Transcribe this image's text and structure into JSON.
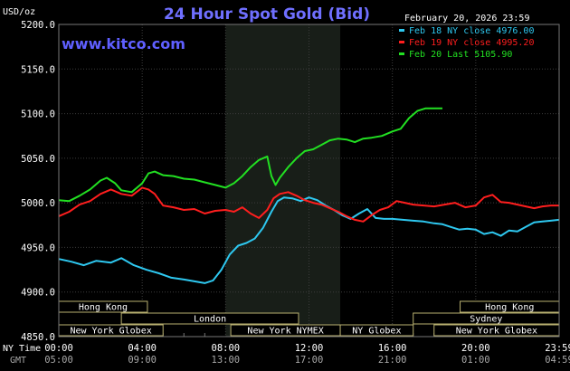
{
  "header": {
    "title": "24 Hour Spot Gold (Bid)",
    "unit": "USD/oz",
    "watermark": "www.kitco.com",
    "date": "February 20, 2026 23:59"
  },
  "legend": {
    "items": [
      {
        "text": "Feb 18 NY close 4976.00",
        "color": "#2ec8f0"
      },
      {
        "text": "Feb 19 NY close 4995.20",
        "color": "#ff1e1e"
      },
      {
        "text": "Feb 20 Last 5105.90",
        "color": "#22e022"
      }
    ]
  },
  "axis_labels": {
    "ny_time": "NY Time",
    "gmt": "GMT"
  },
  "markets": [
    {
      "label": "Hong Kong",
      "start_h": 0,
      "end_h": 4.25,
      "row": 0
    },
    {
      "label": "Hong Kong",
      "start_h": 19.25,
      "end_h": 24,
      "row": 0
    },
    {
      "label": "London",
      "start_h": 3,
      "end_h": 11.5,
      "row": 1
    },
    {
      "label": "Sydney",
      "start_h": 17,
      "end_h": 24,
      "row": 1
    },
    {
      "label": "New York Globex",
      "start_h": 0,
      "end_h": 5,
      "row": 2
    },
    {
      "label": "New York NYMEX",
      "start_h": 8.25,
      "end_h": 13.5,
      "row": 2
    },
    {
      "label": "NY Globex",
      "start_h": 13.5,
      "end_h": 17,
      "row": 2
    },
    {
      "label": "New York Globex",
      "start_h": 18,
      "end_h": 24,
      "row": 2
    }
  ],
  "chart_data": {
    "type": "line",
    "title": "24 Hour Spot Gold (Bid)",
    "ylabel": "USD/oz",
    "ylim": [
      4850,
      5200
    ],
    "yticks": [
      4850,
      4900,
      4950,
      5000,
      5050,
      5100,
      5150,
      5200
    ],
    "xlim_hours": [
      0,
      24
    ],
    "x_ticks": [
      {
        "h": 0,
        "ny": "00:00",
        "gmt": "05:00"
      },
      {
        "h": 4,
        "ny": "04:00",
        "gmt": "09:00"
      },
      {
        "h": 8,
        "ny": "08:00",
        "gmt": "13:00"
      },
      {
        "h": 12,
        "ny": "12:00",
        "gmt": "17:00"
      },
      {
        "h": 16,
        "ny": "16:00",
        "gmt": "21:00"
      },
      {
        "h": 20,
        "ny": "20:00",
        "gmt": "01:00"
      },
      {
        "h": 24,
        "ny": "23:59",
        "gmt": "04:59"
      }
    ],
    "shaded_hours": [
      8,
      13.5
    ],
    "grid": true,
    "legend_position": "top-right",
    "series": [
      {
        "name": "Feb 18 NY close 4976.00",
        "color": "#2ec8f0",
        "points": [
          [
            0,
            4937
          ],
          [
            0.6,
            4934
          ],
          [
            1.2,
            4930
          ],
          [
            1.8,
            4935
          ],
          [
            2.5,
            4933
          ],
          [
            3,
            4938
          ],
          [
            3.6,
            4930
          ],
          [
            4.2,
            4925
          ],
          [
            4.8,
            4921
          ],
          [
            5.4,
            4916
          ],
          [
            6,
            4914
          ],
          [
            6.5,
            4912
          ],
          [
            7,
            4910
          ],
          [
            7.4,
            4913
          ],
          [
            7.8,
            4925
          ],
          [
            8.2,
            4942
          ],
          [
            8.6,
            4952
          ],
          [
            9,
            4955
          ],
          [
            9.4,
            4960
          ],
          [
            9.8,
            4972
          ],
          [
            10.2,
            4990
          ],
          [
            10.5,
            5002
          ],
          [
            10.8,
            5006
          ],
          [
            11.2,
            5005
          ],
          [
            11.6,
            5002
          ],
          [
            12,
            5006
          ],
          [
            12.4,
            5003
          ],
          [
            12.8,
            4997
          ],
          [
            13.2,
            4992
          ],
          [
            13.6,
            4986
          ],
          [
            14,
            4982
          ],
          [
            14.4,
            4988
          ],
          [
            14.8,
            4993
          ],
          [
            15.2,
            4983
          ],
          [
            15.6,
            4982
          ],
          [
            16,
            4982
          ],
          [
            16.5,
            4981
          ],
          [
            17,
            4980
          ],
          [
            17.5,
            4979
          ],
          [
            18,
            4977
          ],
          [
            18.4,
            4976
          ],
          [
            18.8,
            4973
          ],
          [
            19.2,
            4970
          ],
          [
            19.6,
            4971
          ],
          [
            20,
            4970
          ],
          [
            20.4,
            4965
          ],
          [
            20.8,
            4967
          ],
          [
            21.2,
            4963
          ],
          [
            21.6,
            4969
          ],
          [
            22,
            4968
          ],
          [
            22.4,
            4973
          ],
          [
            22.8,
            4978
          ],
          [
            23.2,
            4979
          ],
          [
            23.6,
            4980
          ],
          [
            24,
            4981
          ]
        ]
      },
      {
        "name": "Feb 19 NY close 4995.20",
        "color": "#ff1e1e",
        "points": [
          [
            0,
            4985
          ],
          [
            0.5,
            4990
          ],
          [
            1,
            4998
          ],
          [
            1.5,
            5002
          ],
          [
            2,
            5010
          ],
          [
            2.5,
            5015
          ],
          [
            3,
            5010
          ],
          [
            3.5,
            5008
          ],
          [
            4,
            5017
          ],
          [
            4.3,
            5015
          ],
          [
            4.6,
            5010
          ],
          [
            5,
            4997
          ],
          [
            5.5,
            4995
          ],
          [
            6,
            4992
          ],
          [
            6.5,
            4993
          ],
          [
            7,
            4988
          ],
          [
            7.5,
            4991
          ],
          [
            8,
            4992
          ],
          [
            8.4,
            4990
          ],
          [
            8.8,
            4995
          ],
          [
            9.2,
            4988
          ],
          [
            9.6,
            4983
          ],
          [
            10,
            4992
          ],
          [
            10.3,
            5005
          ],
          [
            10.6,
            5010
          ],
          [
            11,
            5012
          ],
          [
            11.4,
            5008
          ],
          [
            11.8,
            5003
          ],
          [
            12.2,
            5000
          ],
          [
            12.6,
            4998
          ],
          [
            13,
            4994
          ],
          [
            13.4,
            4990
          ],
          [
            13.8,
            4985
          ],
          [
            14.2,
            4981
          ],
          [
            14.6,
            4979
          ],
          [
            15,
            4986
          ],
          [
            15.4,
            4992
          ],
          [
            15.8,
            4995
          ],
          [
            16.2,
            5002
          ],
          [
            16.6,
            5000
          ],
          [
            17,
            4998
          ],
          [
            17.5,
            4997
          ],
          [
            18,
            4996
          ],
          [
            18.5,
            4998
          ],
          [
            19,
            5000
          ],
          [
            19.5,
            4995
          ],
          [
            20,
            4997
          ],
          [
            20.4,
            5006
          ],
          [
            20.8,
            5009
          ],
          [
            21.2,
            5001
          ],
          [
            21.6,
            5000
          ],
          [
            22,
            4998
          ],
          [
            22.4,
            4996
          ],
          [
            22.8,
            4994
          ],
          [
            23.2,
            4996
          ],
          [
            23.6,
            4997
          ],
          [
            24,
            4997
          ]
        ]
      },
      {
        "name": "Feb 20 Last 5105.90",
        "color": "#22e022",
        "points": [
          [
            0,
            5003
          ],
          [
            0.5,
            5002
          ],
          [
            1,
            5008
          ],
          [
            1.5,
            5015
          ],
          [
            2,
            5025
          ],
          [
            2.3,
            5028
          ],
          [
            2.7,
            5022
          ],
          [
            3,
            5014
          ],
          [
            3.5,
            5012
          ],
          [
            4,
            5022
          ],
          [
            4.3,
            5033
          ],
          [
            4.6,
            5035
          ],
          [
            5,
            5031
          ],
          [
            5.5,
            5030
          ],
          [
            6,
            5027
          ],
          [
            6.5,
            5026
          ],
          [
            7,
            5023
          ],
          [
            7.5,
            5020
          ],
          [
            8,
            5017
          ],
          [
            8.4,
            5022
          ],
          [
            8.8,
            5030
          ],
          [
            9.2,
            5040
          ],
          [
            9.6,
            5048
          ],
          [
            10,
            5052
          ],
          [
            10.2,
            5030
          ],
          [
            10.4,
            5020
          ],
          [
            10.6,
            5028
          ],
          [
            11,
            5040
          ],
          [
            11.4,
            5050
          ],
          [
            11.8,
            5058
          ],
          [
            12.2,
            5060
          ],
          [
            12.6,
            5065
          ],
          [
            13,
            5070
          ],
          [
            13.4,
            5072
          ],
          [
            13.8,
            5071
          ],
          [
            14.2,
            5068
          ],
          [
            14.6,
            5072
          ],
          [
            15,
            5073
          ],
          [
            15.5,
            5075
          ],
          [
            16,
            5080
          ],
          [
            16.4,
            5083
          ],
          [
            16.8,
            5095
          ],
          [
            17.2,
            5103
          ],
          [
            17.6,
            5106
          ],
          [
            18,
            5106
          ],
          [
            18.4,
            5106
          ]
        ]
      }
    ]
  }
}
